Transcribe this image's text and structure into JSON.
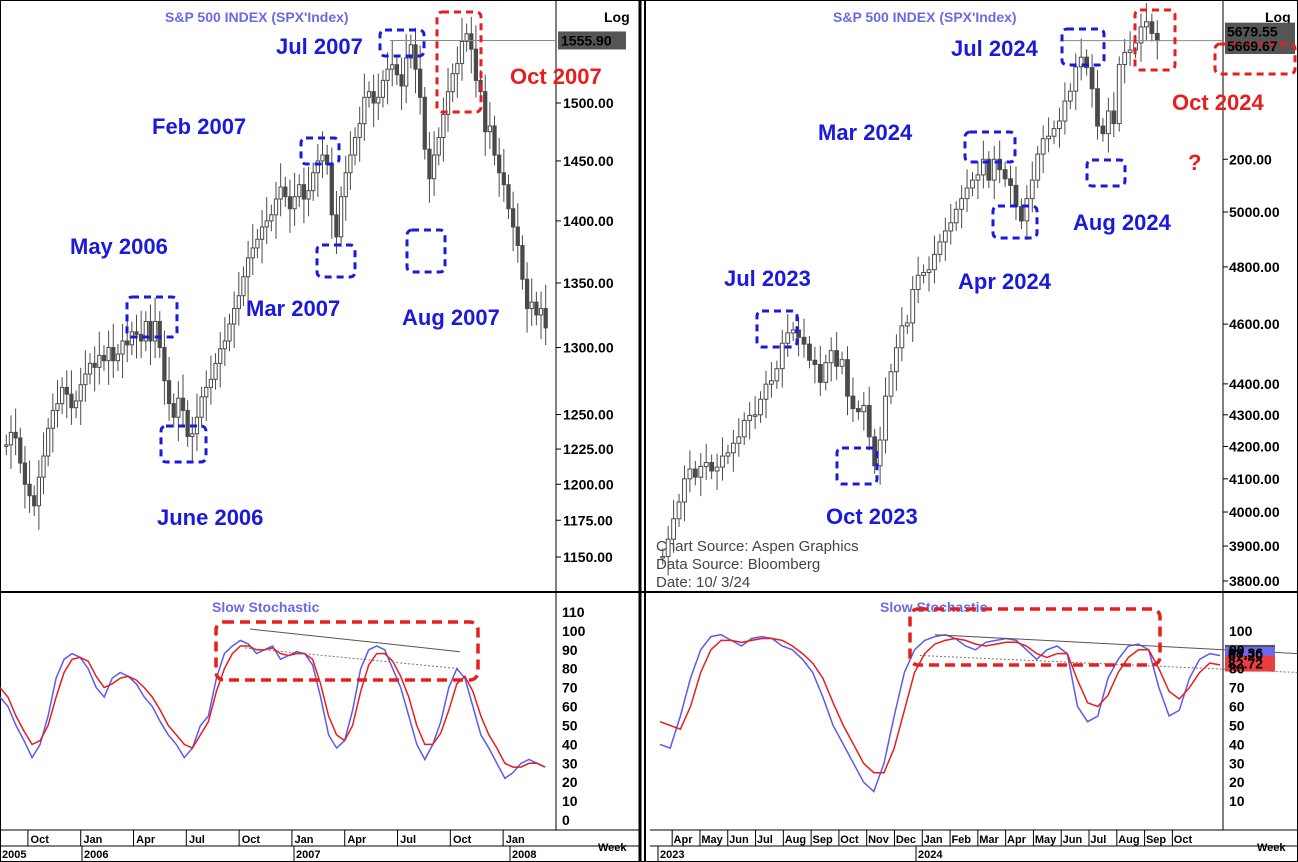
{
  "colors": {
    "candle": "#4a4a4a",
    "blue_line": "#5a5af0",
    "red_line": "#e81d1d",
    "highlight_blue": "#1a1adc",
    "highlight_red": "#e81d1d",
    "title": "#6a6ae6",
    "frame": "#000000"
  },
  "chart_data": [
    {
      "type": "candlestick",
      "title": "S&P  500  INDEX  (SPX'Index)",
      "scale": "log",
      "scale_label": "Log",
      "y_ticks": [
        "1150.00",
        "1175.00",
        "1200.00",
        "1225.00",
        "1250.00",
        "1300.00",
        "1350.00",
        "1400.00",
        "1450.00",
        "1500.00"
      ],
      "last_value_label": "1555.90",
      "x_period": "2005-09 to 2008-02 (weekly)",
      "annotations": [
        {
          "text": "May 2006",
          "color": "blue",
          "price": 1325
        },
        {
          "text": "June 2006",
          "color": "blue",
          "price": 1224
        },
        {
          "text": "Feb 2007",
          "color": "blue",
          "price": 1459
        },
        {
          "text": "Mar 2007",
          "color": "blue",
          "price": 1364
        },
        {
          "text": "Jul 2007",
          "color": "blue",
          "price": 1555
        },
        {
          "text": "Aug 2007",
          "color": "blue",
          "price": 1370
        },
        {
          "text": "Oct 2007",
          "color": "red",
          "price": 1576
        }
      ],
      "weekly_close": [
        1228,
        1237,
        1233,
        1215,
        1200,
        1192,
        1185,
        1205,
        1220,
        1240,
        1253,
        1258,
        1270,
        1265,
        1255,
        1260,
        1272,
        1280,
        1288,
        1285,
        1294,
        1290,
        1300,
        1290,
        1295,
        1305,
        1302,
        1312,
        1310,
        1305,
        1320,
        1305,
        1320,
        1300,
        1275,
        1258,
        1248,
        1262,
        1253,
        1234,
        1236,
        1248,
        1263,
        1270,
        1276,
        1288,
        1299,
        1305,
        1318,
        1330,
        1340,
        1355,
        1370,
        1378,
        1385,
        1395,
        1400,
        1405,
        1418,
        1428,
        1420,
        1410,
        1420,
        1430,
        1418,
        1425,
        1440,
        1450,
        1455,
        1447,
        1405,
        1387,
        1420,
        1440,
        1455,
        1470,
        1482,
        1505,
        1510,
        1500,
        1505,
        1520,
        1530,
        1534,
        1525,
        1515,
        1540,
        1552,
        1530,
        1505,
        1460,
        1435,
        1455,
        1470,
        1490,
        1510,
        1526,
        1535,
        1555,
        1562,
        1548,
        1520,
        1510,
        1475,
        1480,
        1455,
        1440,
        1430,
        1410,
        1395,
        1380,
        1353,
        1330,
        1335,
        1325,
        1330,
        1315
      ],
      "x_labels": [
        "Oct",
        "Jan",
        "Apr",
        "Jul",
        "Oct",
        "Jan",
        "Apr",
        "Jul",
        "Oct",
        "Jan"
      ],
      "year_labels": [
        "2005",
        "2006",
        "2007",
        "2008"
      ],
      "period_label": "Week"
    },
    {
      "type": "candlestick",
      "title": "S&P  500  INDEX  (SPX'Index)",
      "scale": "log",
      "scale_label": "Log",
      "y_ticks": [
        "3800.00",
        "3900.00",
        "4000.00",
        "4100.00",
        "4200.00",
        "4300.00",
        "4400.00",
        "4600.00",
        "4800.00",
        "5000.00",
        "200.00"
      ],
      "last_value_labels": [
        "5679.55",
        "5669.67"
      ],
      "x_period": "2023-03 to 2024-10 (weekly)",
      "annotations": [
        {
          "text": "Jul 2023",
          "color": "blue",
          "price": 4572
        },
        {
          "text": "Oct 2023",
          "color": "blue",
          "price": 4145
        },
        {
          "text": "Mar 2024",
          "color": "blue",
          "price": 5235
        },
        {
          "text": "Apr 2024",
          "color": "blue",
          "price": 4998
        },
        {
          "text": "Jul 2024",
          "color": "blue",
          "price": 5649
        },
        {
          "text": "Aug 2024",
          "color": "blue",
          "price": 5130
        },
        {
          "text": "Oct 2024",
          "color": "red",
          "price": 5748
        },
        {
          "text": "?",
          "color": "red",
          "price": 5240
        }
      ],
      "source_text": [
        "Chart  Source:  Aspen  Graphics",
        "Data  Source:  Bloomberg",
        "Date:  10/  3/24"
      ],
      "weekly_close": [
        3870,
        3920,
        3980,
        4030,
        4100,
        4130,
        4105,
        4138,
        4150,
        4124,
        4136,
        4170,
        4180,
        4210,
        4230,
        4282,
        4298,
        4300,
        4350,
        4399,
        4410,
        4450,
        4535,
        4570,
        4580,
        4555,
        4532,
        4478,
        4464,
        4405,
        4470,
        4510,
        4458,
        4480,
        4360,
        4320,
        4310,
        4330,
        4230,
        4140,
        4220,
        4360,
        4440,
        4520,
        4594,
        4604,
        4720,
        4770,
        4780,
        4790,
        4845,
        4890,
        4930,
        4960,
        5010,
        5050,
        5090,
        5120,
        5140,
        5200,
        5120,
        5200,
        5160,
        5125,
        5100,
        5020,
        4967,
        5050,
        5120,
        5220,
        5280,
        5290,
        5320,
        5350,
        5430,
        5470,
        5570,
        5610,
        5567,
        5480,
        5330,
        5300,
        5390,
        5340,
        5580,
        5630,
        5640,
        5670,
        5738,
        5760,
        5710,
        5680
      ],
      "x_labels": [
        "Apr",
        "May",
        "Jun",
        "Jul",
        "Aug",
        "Sep",
        "Oct",
        "Nov",
        "Dec",
        "Jan",
        "Feb",
        "Mar",
        "Apr",
        "May",
        "Jun",
        "Jul",
        "Aug",
        "Sep",
        "Oct"
      ],
      "year_labels": [
        "2023",
        "2024"
      ],
      "period_label": "Week"
    },
    {
      "type": "line",
      "title": "Slow  Stochastic",
      "ylim": [
        0,
        110
      ],
      "y_ticks": [
        "0",
        "10",
        "20",
        "30",
        "40",
        "50",
        "60",
        "70",
        "80",
        "90",
        "100",
        "110"
      ],
      "series": [
        {
          "color": "blue",
          "values": [
            65,
            60,
            50,
            42,
            33,
            40,
            55,
            75,
            85,
            88,
            86,
            80,
            70,
            65,
            75,
            78,
            76,
            72,
            65,
            60,
            52,
            45,
            40,
            33,
            38,
            50,
            55,
            75,
            88,
            92,
            95,
            93,
            88,
            90,
            92,
            85,
            87,
            89,
            88,
            82,
            65,
            45,
            38,
            42,
            58,
            80,
            90,
            92,
            90,
            80,
            70,
            55,
            40,
            32,
            40,
            52,
            70,
            80,
            75,
            60,
            45,
            38,
            30,
            22,
            25,
            30,
            32,
            30,
            28
          ]
        },
        {
          "color": "red",
          "values": [
            70,
            65,
            55,
            47,
            40,
            42,
            50,
            65,
            78,
            85,
            86,
            84,
            76,
            70,
            72,
            75,
            76,
            74,
            70,
            65,
            58,
            50,
            45,
            40,
            38,
            45,
            52,
            68,
            80,
            88,
            92,
            92,
            90,
            90,
            91,
            88,
            87,
            88,
            88,
            85,
            72,
            55,
            45,
            42,
            50,
            68,
            82,
            88,
            88,
            84,
            76,
            65,
            50,
            40,
            40,
            46,
            58,
            72,
            76,
            68,
            55,
            45,
            38,
            30,
            28,
            28,
            30,
            30,
            28
          ]
        }
      ],
      "reference_lines": [
        "upper trendline",
        "dotted lower trendline"
      ]
    },
    {
      "type": "line",
      "title": "Slow  Stochastic",
      "ylim": [
        0,
        110
      ],
      "y_ticks": [
        "10",
        "20",
        "30",
        "40",
        "50",
        "60",
        "70",
        "80",
        "90",
        "100"
      ],
      "last_value_labels": [
        "88.36",
        "87.20",
        "82.72"
      ],
      "series": [
        {
          "color": "blue",
          "values": [
            40,
            38,
            55,
            75,
            90,
            97,
            98,
            95,
            92,
            96,
            97,
            96,
            92,
            90,
            85,
            78,
            65,
            50,
            40,
            30,
            20,
            15,
            30,
            55,
            78,
            90,
            95,
            97,
            98,
            96,
            92,
            90,
            94,
            95,
            96,
            95,
            90,
            85,
            90,
            92,
            88,
            60,
            52,
            55,
            75,
            85,
            92,
            93,
            90,
            70,
            55,
            58,
            75,
            85,
            88,
            87
          ]
        },
        {
          "color": "red",
          "values": [
            52,
            50,
            48,
            60,
            78,
            90,
            95,
            95,
            94,
            95,
            96,
            96,
            95,
            92,
            88,
            83,
            75,
            62,
            50,
            40,
            30,
            25,
            25,
            38,
            58,
            78,
            88,
            93,
            95,
            96,
            95,
            93,
            92,
            93,
            94,
            94,
            92,
            88,
            86,
            88,
            88,
            74,
            62,
            60,
            66,
            78,
            86,
            90,
            90,
            80,
            68,
            64,
            70,
            78,
            83,
            82
          ]
        }
      ],
      "reference_lines": [
        "upper trendline",
        "dotted lower trendline"
      ]
    }
  ]
}
